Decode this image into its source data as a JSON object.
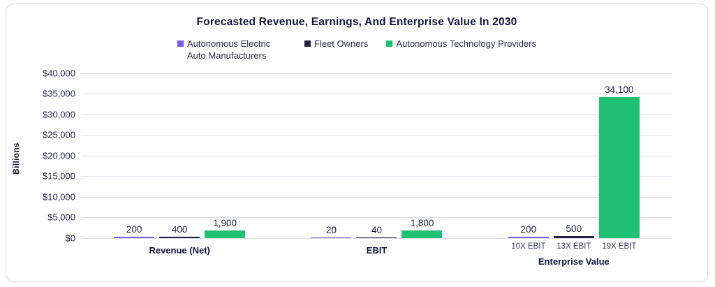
{
  "chart_data": {
    "type": "bar",
    "title": "Forecasted Revenue, Earnings, And Enterprise Value In 2030",
    "ylabel": "Billions",
    "xlabel": "",
    "categories": [
      "Revenue (Net)",
      "EBIT",
      "Enterprise Value"
    ],
    "series": [
      {
        "name": "Autonomous Electric Auto Manufacturers",
        "color": "#7b5cf5",
        "values": [
          200,
          20,
          200
        ],
        "value_labels": [
          "200",
          "20",
          "200"
        ]
      },
      {
        "name": "Fleet Owners",
        "color": "#232340",
        "values": [
          400,
          40,
          500
        ],
        "value_labels": [
          "400",
          "40",
          "500"
        ]
      },
      {
        "name": "Autonomous Technology Providers",
        "color": "#1fbf74",
        "values": [
          1900,
          1800,
          34100
        ],
        "value_labels": [
          "1,900",
          "1,800",
          "34,100"
        ]
      }
    ],
    "bar_sublabels_by_category": {
      "Enterprise Value": [
        "10X EBIT",
        "13X EBIT",
        "19X EBIT"
      ]
    },
    "y_ticks": [
      "$40,000",
      "$35,000",
      "$30,000",
      "$25,000",
      "$20,000",
      "$15,000",
      "$10,000",
      "$5,000",
      "$0"
    ],
    "ylim": [
      0,
      40000
    ],
    "grid": true,
    "legend_position": "top",
    "colors": {
      "grid": "#dcdce6",
      "card_border": "#d9d9e2",
      "title_text": "#14143c",
      "axis_text": "#2a2a4c",
      "value_text": "#20203f",
      "background": "#ffffff"
    }
  }
}
